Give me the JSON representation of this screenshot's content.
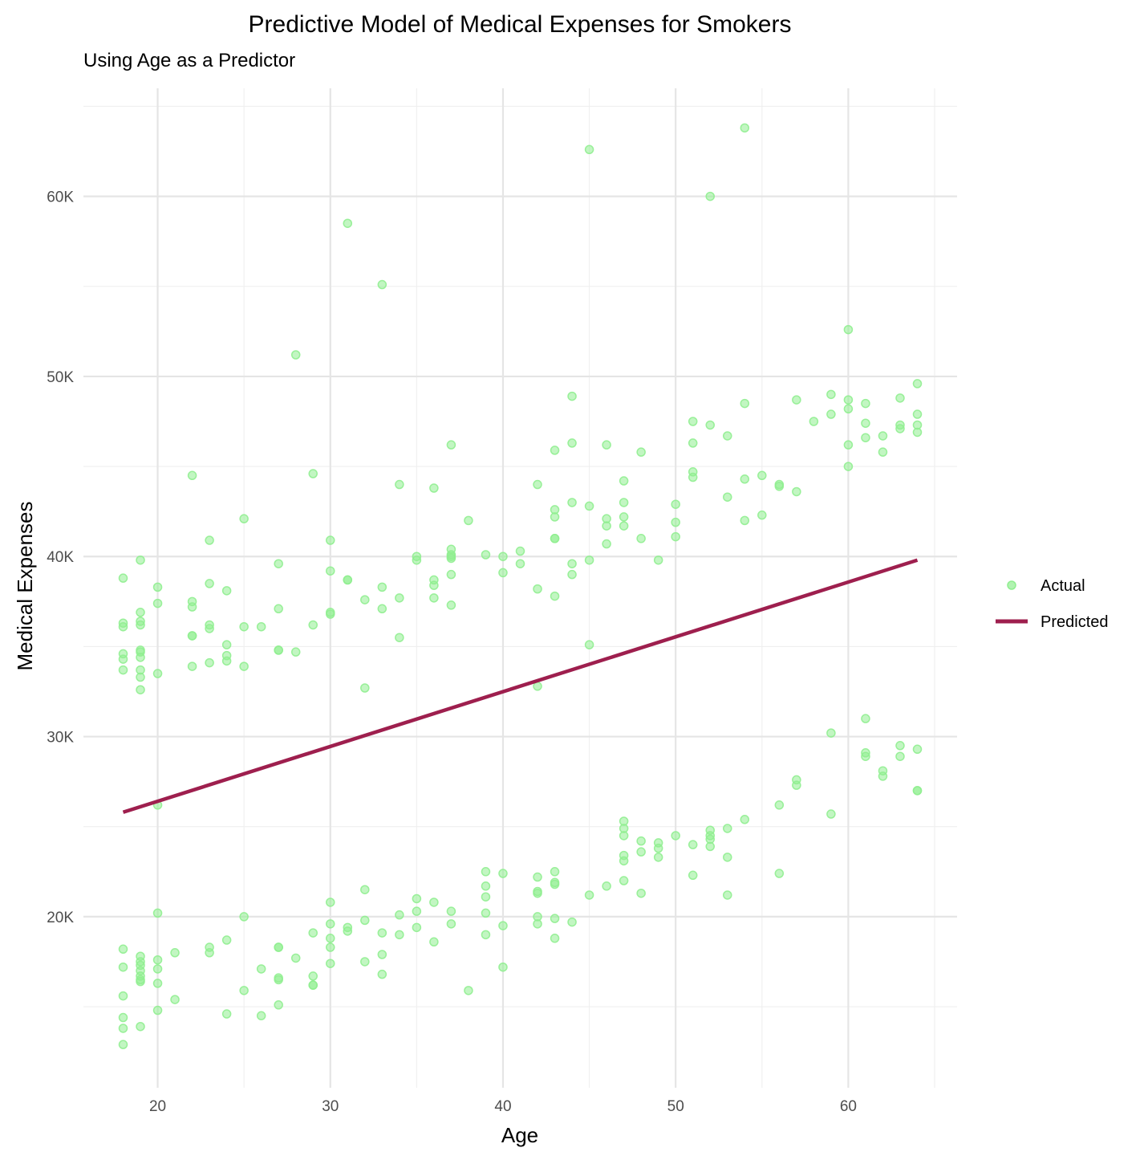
{
  "chart_data": {
    "type": "scatter",
    "title": "Predictive Model of Medical Expenses for Smokers",
    "subtitle": "Using Age as a Predictor",
    "xlabel": "Age",
    "ylabel": "Medical Expenses",
    "xlim": [
      15.7,
      66.3
    ],
    "ylim": [
      10500,
      66000
    ],
    "x_ticks": [
      20,
      30,
      40,
      50,
      60
    ],
    "x_tick_labels": [
      "20",
      "30",
      "40",
      "50",
      "60"
    ],
    "x_minor_ticks": [
      25,
      35,
      45,
      55,
      65
    ],
    "y_ticks": [
      20000,
      30000,
      40000,
      50000,
      60000
    ],
    "y_tick_labels": [
      "20K",
      "30K",
      "40K",
      "50K",
      "60K"
    ],
    "y_minor_ticks": [
      15000,
      25000,
      35000,
      45000,
      55000,
      65000
    ],
    "grid": true,
    "legend_position": "right",
    "colors": {
      "actual": "#90ee90",
      "predicted": "#9e1f4e"
    },
    "series": [
      {
        "name": "Actual",
        "kind": "points",
        "points": [
          [
            18,
            38800
          ],
          [
            18,
            36300
          ],
          [
            18,
            36100
          ],
          [
            18,
            34600
          ],
          [
            18,
            34300
          ],
          [
            18,
            33700
          ],
          [
            18,
            18200
          ],
          [
            18,
            17200
          ],
          [
            18,
            15600
          ],
          [
            18,
            14400
          ],
          [
            18,
            13800
          ],
          [
            18,
            12900
          ],
          [
            19,
            39800
          ],
          [
            19,
            36900
          ],
          [
            19,
            36400
          ],
          [
            19,
            36200
          ],
          [
            19,
            34800
          ],
          [
            19,
            34700
          ],
          [
            19,
            34400
          ],
          [
            19,
            33700
          ],
          [
            19,
            33300
          ],
          [
            19,
            32600
          ],
          [
            19,
            17800
          ],
          [
            19,
            17500
          ],
          [
            19,
            17300
          ],
          [
            19,
            17000
          ],
          [
            19,
            16700
          ],
          [
            19,
            16500
          ],
          [
            19,
            16400
          ],
          [
            19,
            13900
          ],
          [
            20,
            38300
          ],
          [
            20,
            37400
          ],
          [
            20,
            33500
          ],
          [
            20,
            26200
          ],
          [
            20,
            20200
          ],
          [
            20,
            17600
          ],
          [
            20,
            17100
          ],
          [
            20,
            16300
          ],
          [
            20,
            14800
          ],
          [
            21,
            18000
          ],
          [
            21,
            15400
          ],
          [
            22,
            44500
          ],
          [
            22,
            37500
          ],
          [
            22,
            37200
          ],
          [
            22,
            35600
          ],
          [
            22,
            35600
          ],
          [
            22,
            33900
          ],
          [
            23,
            40900
          ],
          [
            23,
            38500
          ],
          [
            23,
            36200
          ],
          [
            23,
            36000
          ],
          [
            23,
            34100
          ],
          [
            23,
            18300
          ],
          [
            23,
            18000
          ],
          [
            24,
            38100
          ],
          [
            24,
            35100
          ],
          [
            24,
            34500
          ],
          [
            24,
            34200
          ],
          [
            24,
            18700
          ],
          [
            24,
            14600
          ],
          [
            25,
            42100
          ],
          [
            25,
            36100
          ],
          [
            25,
            33900
          ],
          [
            25,
            20000
          ],
          [
            25,
            15900
          ],
          [
            26,
            36100
          ],
          [
            26,
            17100
          ],
          [
            26,
            14500
          ],
          [
            27,
            39600
          ],
          [
            27,
            37100
          ],
          [
            27,
            34800
          ],
          [
            27,
            34800
          ],
          [
            27,
            18300
          ],
          [
            27,
            18300
          ],
          [
            27,
            16600
          ],
          [
            27,
            16500
          ],
          [
            27,
            15100
          ],
          [
            28,
            51200
          ],
          [
            28,
            34700
          ],
          [
            28,
            17700
          ],
          [
            29,
            44600
          ],
          [
            29,
            36200
          ],
          [
            29,
            19100
          ],
          [
            29,
            16700
          ],
          [
            29,
            16200
          ],
          [
            29,
            16200
          ],
          [
            30,
            40900
          ],
          [
            30,
            39200
          ],
          [
            30,
            36900
          ],
          [
            30,
            36800
          ],
          [
            30,
            20800
          ],
          [
            30,
            19600
          ],
          [
            30,
            18800
          ],
          [
            30,
            18300
          ],
          [
            30,
            17400
          ],
          [
            31,
            58500
          ],
          [
            31,
            38700
          ],
          [
            31,
            38700
          ],
          [
            31,
            19400
          ],
          [
            31,
            19200
          ],
          [
            32,
            37600
          ],
          [
            32,
            32700
          ],
          [
            32,
            21500
          ],
          [
            32,
            19800
          ],
          [
            32,
            17500
          ],
          [
            33,
            55100
          ],
          [
            33,
            38300
          ],
          [
            33,
            37100
          ],
          [
            33,
            19100
          ],
          [
            33,
            17900
          ],
          [
            33,
            16800
          ],
          [
            34,
            44000
          ],
          [
            34,
            37700
          ],
          [
            34,
            35500
          ],
          [
            34,
            20100
          ],
          [
            34,
            19000
          ],
          [
            35,
            40000
          ],
          [
            35,
            39800
          ],
          [
            35,
            21000
          ],
          [
            35,
            20300
          ],
          [
            35,
            19400
          ],
          [
            36,
            43800
          ],
          [
            36,
            38700
          ],
          [
            36,
            38400
          ],
          [
            36,
            37700
          ],
          [
            36,
            20800
          ],
          [
            36,
            18600
          ],
          [
            37,
            46200
          ],
          [
            37,
            40400
          ],
          [
            37,
            40100
          ],
          [
            37,
            40000
          ],
          [
            37,
            39900
          ],
          [
            37,
            39000
          ],
          [
            37,
            37300
          ],
          [
            37,
            20300
          ],
          [
            37,
            19600
          ],
          [
            38,
            42000
          ],
          [
            38,
            15900
          ],
          [
            39,
            40100
          ],
          [
            39,
            22500
          ],
          [
            39,
            21700
          ],
          [
            39,
            21100
          ],
          [
            39,
            20200
          ],
          [
            39,
            19000
          ],
          [
            40,
            40000
          ],
          [
            40,
            39100
          ],
          [
            40,
            22400
          ],
          [
            40,
            19500
          ],
          [
            40,
            17200
          ],
          [
            41,
            40300
          ],
          [
            41,
            39600
          ],
          [
            42,
            44000
          ],
          [
            42,
            38200
          ],
          [
            42,
            32800
          ],
          [
            42,
            22200
          ],
          [
            42,
            21400
          ],
          [
            42,
            21300
          ],
          [
            42,
            20000
          ],
          [
            42,
            19600
          ],
          [
            43,
            45900
          ],
          [
            43,
            42600
          ],
          [
            43,
            42200
          ],
          [
            43,
            41000
          ],
          [
            43,
            41000
          ],
          [
            43,
            37800
          ],
          [
            43,
            22500
          ],
          [
            43,
            21900
          ],
          [
            43,
            21800
          ],
          [
            43,
            19900
          ],
          [
            43,
            18800
          ],
          [
            44,
            48900
          ],
          [
            44,
            46300
          ],
          [
            44,
            43000
          ],
          [
            44,
            39600
          ],
          [
            44,
            39000
          ],
          [
            44,
            19700
          ],
          [
            45,
            62600
          ],
          [
            45,
            42800
          ],
          [
            45,
            39800
          ],
          [
            45,
            35100
          ],
          [
            45,
            21200
          ],
          [
            46,
            46200
          ],
          [
            46,
            42100
          ],
          [
            46,
            41700
          ],
          [
            46,
            40700
          ],
          [
            46,
            21700
          ],
          [
            47,
            44200
          ],
          [
            47,
            43000
          ],
          [
            47,
            42200
          ],
          [
            47,
            41700
          ],
          [
            47,
            25300
          ],
          [
            47,
            24900
          ],
          [
            47,
            24500
          ],
          [
            47,
            23400
          ],
          [
            47,
            23100
          ],
          [
            47,
            22000
          ],
          [
            48,
            45800
          ],
          [
            48,
            41000
          ],
          [
            48,
            24200
          ],
          [
            48,
            23600
          ],
          [
            48,
            21300
          ],
          [
            49,
            39800
          ],
          [
            49,
            24100
          ],
          [
            49,
            23800
          ],
          [
            49,
            23300
          ],
          [
            50,
            42900
          ],
          [
            50,
            41900
          ],
          [
            50,
            41100
          ],
          [
            50,
            24500
          ],
          [
            51,
            47500
          ],
          [
            51,
            46300
          ],
          [
            51,
            44700
          ],
          [
            51,
            44400
          ],
          [
            51,
            24000
          ],
          [
            51,
            22300
          ],
          [
            52,
            60000
          ],
          [
            52,
            47300
          ],
          [
            52,
            24800
          ],
          [
            52,
            24500
          ],
          [
            52,
            24300
          ],
          [
            52,
            23900
          ],
          [
            53,
            46700
          ],
          [
            53,
            43300
          ],
          [
            53,
            24900
          ],
          [
            53,
            23300
          ],
          [
            53,
            21200
          ],
          [
            54,
            63800
          ],
          [
            54,
            48500
          ],
          [
            54,
            44300
          ],
          [
            54,
            42000
          ],
          [
            54,
            25400
          ],
          [
            55,
            44500
          ],
          [
            55,
            42300
          ],
          [
            56,
            44000
          ],
          [
            56,
            43900
          ],
          [
            56,
            26200
          ],
          [
            56,
            22400
          ],
          [
            57,
            48700
          ],
          [
            57,
            43600
          ],
          [
            57,
            27600
          ],
          [
            57,
            27300
          ],
          [
            58,
            47500
          ],
          [
            59,
            49000
          ],
          [
            59,
            47900
          ],
          [
            59,
            30200
          ],
          [
            59,
            25700
          ],
          [
            60,
            52600
          ],
          [
            60,
            48700
          ],
          [
            60,
            48200
          ],
          [
            60,
            46200
          ],
          [
            60,
            45000
          ],
          [
            61,
            48500
          ],
          [
            61,
            47400
          ],
          [
            61,
            46600
          ],
          [
            61,
            31000
          ],
          [
            61,
            29100
          ],
          [
            61,
            28900
          ],
          [
            62,
            46700
          ],
          [
            62,
            45800
          ],
          [
            62,
            28100
          ],
          [
            62,
            27800
          ],
          [
            63,
            48800
          ],
          [
            63,
            47300
          ],
          [
            63,
            47100
          ],
          [
            63,
            29500
          ],
          [
            63,
            28900
          ],
          [
            64,
            49600
          ],
          [
            64,
            47900
          ],
          [
            64,
            47300
          ],
          [
            64,
            46900
          ],
          [
            64,
            29300
          ],
          [
            64,
            27000
          ],
          [
            64,
            27000
          ]
        ]
      },
      {
        "name": "Predicted",
        "kind": "line",
        "points": [
          [
            18,
            25800
          ],
          [
            64,
            39800
          ]
        ]
      }
    ]
  }
}
